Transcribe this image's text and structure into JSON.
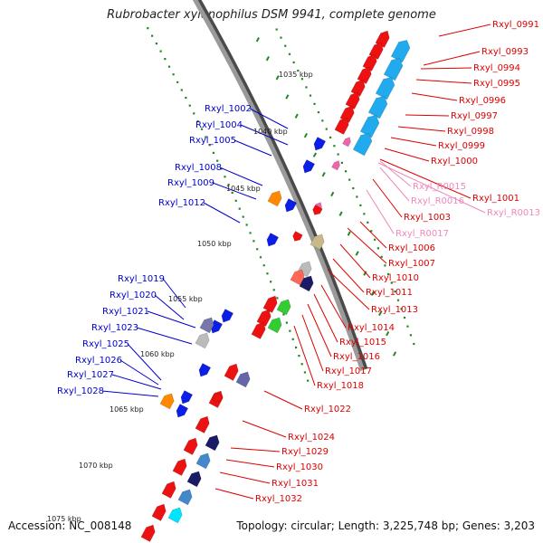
{
  "title": "Rubrobacter xylanophilus DSM 9941, complete genome",
  "footer": {
    "accession": "Accession: NC_008148",
    "stats": "Topology: circular; Length: 3,225,748 bp; Genes: 3,203"
  },
  "colors": {
    "backbone": "#9a9a9a",
    "backbone_shadow": "#4a4a4a",
    "tick": "#228822",
    "right_label": "#dd0000",
    "right_label_rna": "#ee88bb",
    "left_label": "#0000cc"
  },
  "kbp_marks": [
    "1035 kbp",
    "1040 kbp",
    "1045 kbp",
    "1050 kbp",
    "1055 kbp",
    "1060 kbp",
    "1065 kbp",
    "1070 kbp",
    "1075 kbp"
  ],
  "right_labels": [
    {
      "text": "Rxyl_0991",
      "kind": "gene"
    },
    {
      "text": "Rxyl_0993",
      "kind": "gene"
    },
    {
      "text": "Rxyl_0994",
      "kind": "gene"
    },
    {
      "text": "Rxyl_0995",
      "kind": "gene"
    },
    {
      "text": "Rxyl_0996",
      "kind": "gene"
    },
    {
      "text": "Rxyl_0997",
      "kind": "gene"
    },
    {
      "text": "Rxyl_0998",
      "kind": "gene"
    },
    {
      "text": "Rxyl_0999",
      "kind": "gene"
    },
    {
      "text": "Rxyl_1000",
      "kind": "gene"
    },
    {
      "text": "Rxyl_R0015",
      "kind": "rna"
    },
    {
      "text": "Rxyl_1001",
      "kind": "gene"
    },
    {
      "text": "Rxyl_R0016",
      "kind": "rna"
    },
    {
      "text": "Rxyl_R0013",
      "kind": "rna"
    },
    {
      "text": "Rxyl_1003",
      "kind": "gene"
    },
    {
      "text": "Rxyl_R0017",
      "kind": "rna"
    },
    {
      "text": "Rxyl_1006",
      "kind": "gene"
    },
    {
      "text": "Rxyl_1007",
      "kind": "gene"
    },
    {
      "text": "Rxyl_1010",
      "kind": "gene"
    },
    {
      "text": "Rxyl_1011",
      "kind": "gene"
    },
    {
      "text": "Rxyl_1013",
      "kind": "gene"
    },
    {
      "text": "Rxyl_1014",
      "kind": "gene"
    },
    {
      "text": "Rxyl_1015",
      "kind": "gene"
    },
    {
      "text": "Rxyl_1016",
      "kind": "gene"
    },
    {
      "text": "Rxyl_1017",
      "kind": "gene"
    },
    {
      "text": "Rxyl_1018",
      "kind": "gene"
    },
    {
      "text": "Rxyl_1022",
      "kind": "gene"
    },
    {
      "text": "Rxyl_1024",
      "kind": "gene"
    },
    {
      "text": "Rxyl_1029",
      "kind": "gene"
    },
    {
      "text": "Rxyl_1030",
      "kind": "gene"
    },
    {
      "text": "Rxyl_1031",
      "kind": "gene"
    },
    {
      "text": "Rxyl_1032",
      "kind": "gene"
    }
  ],
  "left_labels": [
    {
      "text": "Rxyl_1002"
    },
    {
      "text": "Rxyl_1004"
    },
    {
      "text": "Rxyl_1005"
    },
    {
      "text": "Rxyl_1008"
    },
    {
      "text": "Rxyl_1009"
    },
    {
      "text": "Rxyl_1012"
    },
    {
      "text": "Rxyl_1019"
    },
    {
      "text": "Rxyl_1020"
    },
    {
      "text": "Rxyl_1021"
    },
    {
      "text": "Rxyl_1023"
    },
    {
      "text": "Rxyl_1025"
    },
    {
      "text": "Rxyl_1026"
    },
    {
      "text": "Rxyl_1027"
    },
    {
      "text": "Rxyl_1028"
    }
  ]
}
